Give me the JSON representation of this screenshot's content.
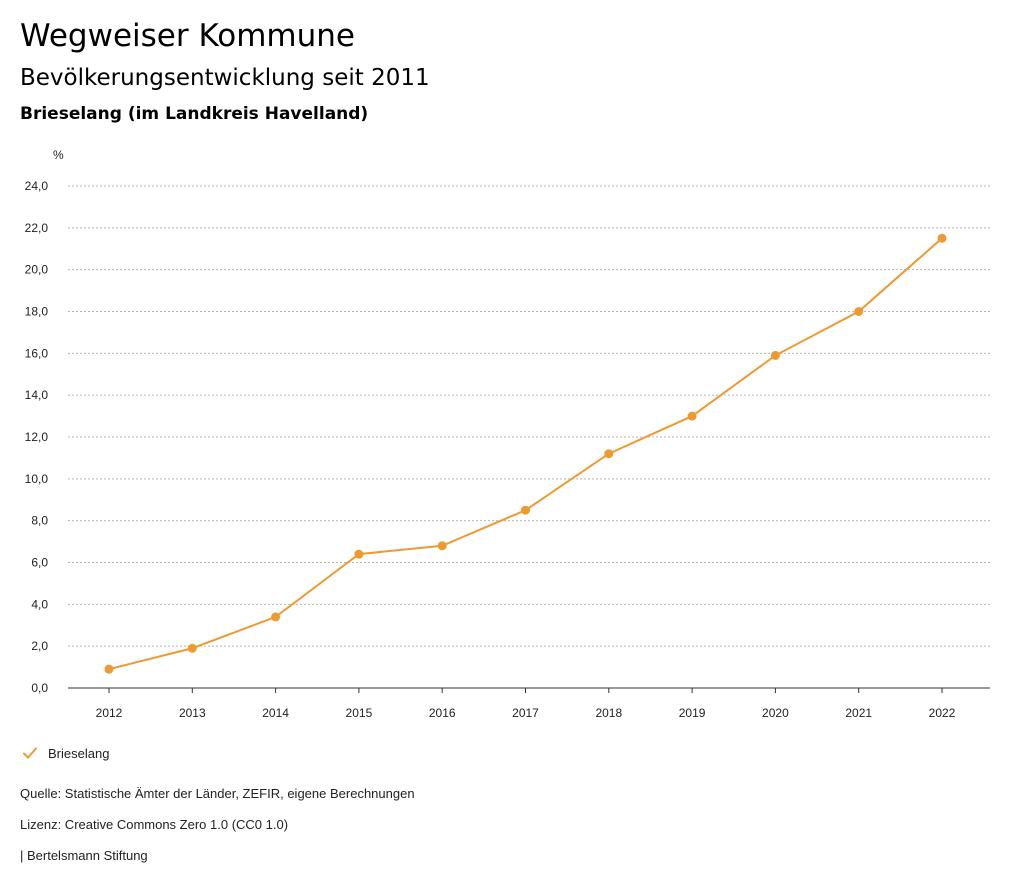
{
  "header": {
    "title": "Wegweiser Kommune",
    "subtitle": "Bevölkerungsentwicklung seit 2011",
    "region": "Brieselang (im Landkreis Havelland)"
  },
  "colors": {
    "series": "#ed9a31",
    "grid": "#b5b5b5",
    "axis": "#333333"
  },
  "chart_data": {
    "type": "line",
    "ylabel": "%",
    "ylim": [
      0,
      24
    ],
    "y_ticks": [
      "0,0",
      "2,0",
      "4,0",
      "6,0",
      "8,0",
      "10,0",
      "12,0",
      "14,0",
      "16,0",
      "18,0",
      "20,0",
      "22,0",
      "24,0"
    ],
    "x": [
      "2012",
      "2013",
      "2014",
      "2015",
      "2016",
      "2017",
      "2018",
      "2019",
      "2020",
      "2021",
      "2022"
    ],
    "grid": true,
    "legend_position": "bottom-left",
    "series": [
      {
        "name": "Brieselang",
        "values": [
          0.9,
          1.9,
          3.4,
          6.4,
          6.8,
          8.5,
          11.2,
          13.0,
          15.9,
          18.0,
          21.5
        ]
      }
    ]
  },
  "legend": {
    "label": "Brieselang",
    "icon": "check-icon"
  },
  "footer": {
    "source": "Quelle: Statistische Ämter der Länder, ZEFIR, eigene Berechnungen",
    "license": "Lizenz: Creative Commons Zero 1.0 (CC0 1.0)",
    "publisher": "| Bertelsmann Stiftung"
  }
}
